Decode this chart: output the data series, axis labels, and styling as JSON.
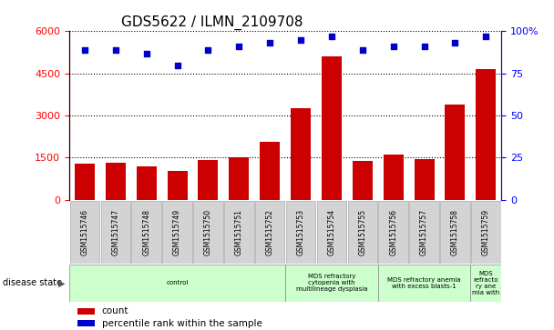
{
  "title": "GDS5622 / ILMN_2109708",
  "samples": [
    "GSM1515746",
    "GSM1515747",
    "GSM1515748",
    "GSM1515749",
    "GSM1515750",
    "GSM1515751",
    "GSM1515752",
    "GSM1515753",
    "GSM1515754",
    "GSM1515755",
    "GSM1515756",
    "GSM1515757",
    "GSM1515758",
    "GSM1515759"
  ],
  "counts": [
    1280,
    1330,
    1200,
    1020,
    1400,
    1500,
    2050,
    3250,
    5100,
    1370,
    1600,
    1450,
    3400,
    4650
  ],
  "percentiles": [
    89,
    89,
    87,
    80,
    89,
    91,
    93,
    95,
    97,
    89,
    91,
    91,
    93,
    97
  ],
  "bar_color": "#cc0000",
  "dot_color": "#0000cc",
  "ylim_left": [
    0,
    6000
  ],
  "ylim_right": [
    0,
    100
  ],
  "yticks_left": [
    0,
    1500,
    3000,
    4500,
    6000
  ],
  "yticks_right": [
    0,
    25,
    50,
    75,
    100
  ],
  "disease_groups": [
    {
      "label": "control",
      "start": 0,
      "end": 7,
      "color": "#ccffcc"
    },
    {
      "label": "MDS refractory\ncytopenia with\nmultilineage dysplasia",
      "start": 7,
      "end": 10,
      "color": "#ccffcc"
    },
    {
      "label": "MDS refractory anemia\nwith excess blasts-1",
      "start": 10,
      "end": 13,
      "color": "#ccffcc"
    },
    {
      "label": "MDS\nrefracto\nry ane\nmia with",
      "start": 13,
      "end": 14,
      "color": "#ccffcc"
    }
  ],
  "legend_count_color": "#cc0000",
  "legend_pct_color": "#0000cc",
  "title_fontsize": 11,
  "bar_fontsize": 6,
  "axis_fontsize": 8
}
